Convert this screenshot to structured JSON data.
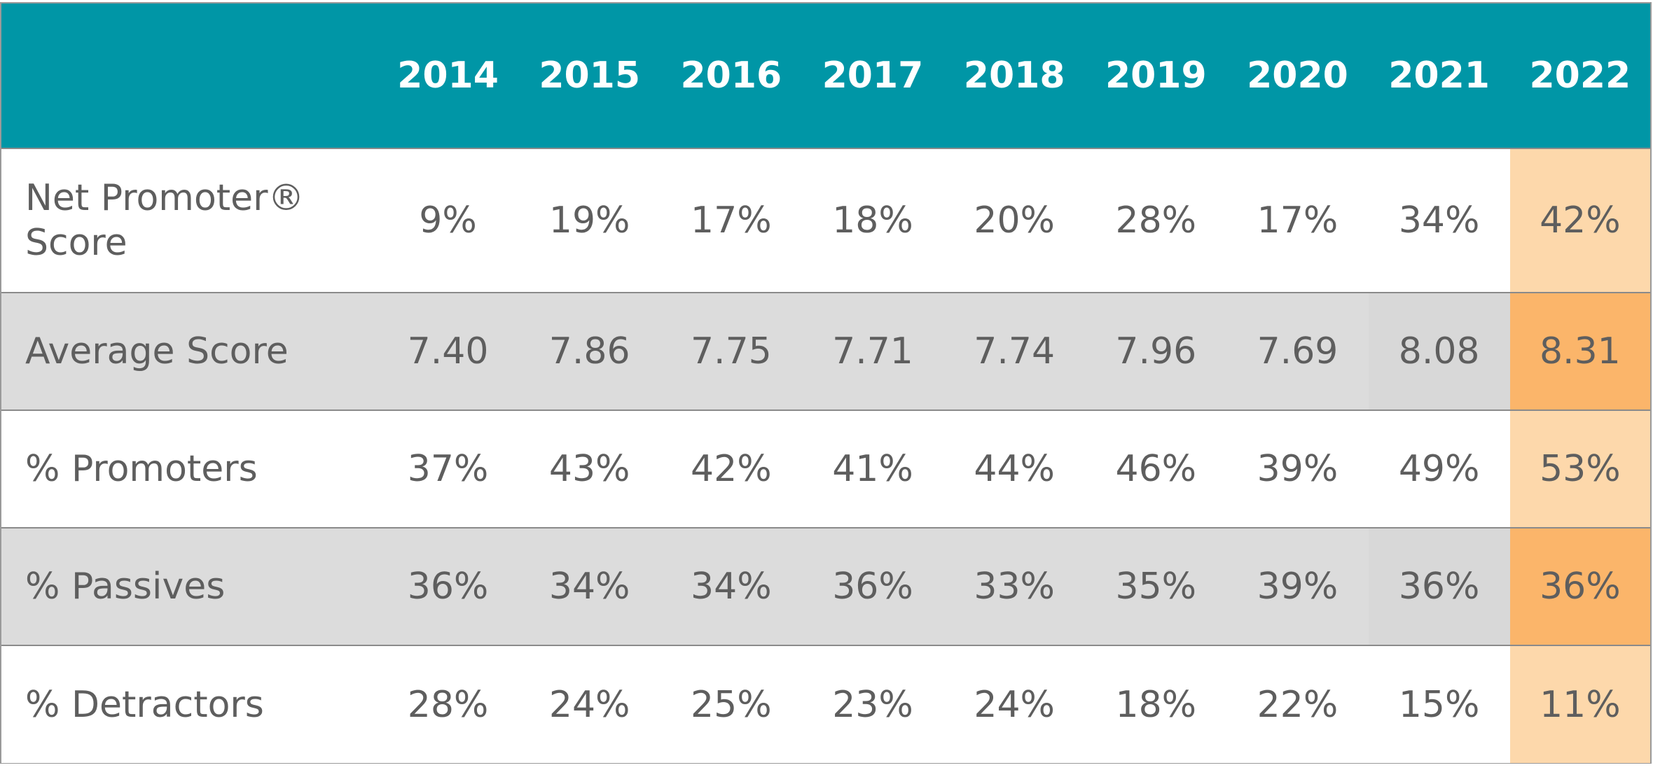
{
  "chart_data": {
    "type": "table",
    "columns": [
      "",
      "2014",
      "2015",
      "2016",
      "2017",
      "2018",
      "2019",
      "2020",
      "2021",
      "2022"
    ],
    "highlighted_column": "2022",
    "rows": [
      {
        "label": "Net Promoter® Score",
        "values": [
          "9%",
          "19%",
          "17%",
          "18%",
          "20%",
          "28%",
          "17%",
          "34%",
          "42%"
        ]
      },
      {
        "label": "Average Score",
        "values": [
          "7.40",
          "7.86",
          "7.75",
          "7.71",
          "7.74",
          "7.96",
          "7.69",
          "8.08",
          "8.31"
        ]
      },
      {
        "label": "% Promoters",
        "values": [
          "37%",
          "43%",
          "42%",
          "41%",
          "44%",
          "46%",
          "39%",
          "49%",
          "53%"
        ]
      },
      {
        "label": "% Passives",
        "values": [
          "36%",
          "34%",
          "34%",
          "36%",
          "33%",
          "35%",
          "39%",
          "36%",
          "36%"
        ]
      },
      {
        "label": "% Detractors",
        "values": [
          "28%",
          "24%",
          "25%",
          "23%",
          "24%",
          "18%",
          "22%",
          "15%",
          "11%"
        ]
      }
    ]
  },
  "colors": {
    "header_bg": "#0096a6",
    "header_text": "#ffffff",
    "body_text": "#5e5e5e",
    "shaded_row_bg": "#dcdcdc",
    "highlight_light": "#fdd8ab",
    "highlight_dark": "#fbb56a"
  }
}
